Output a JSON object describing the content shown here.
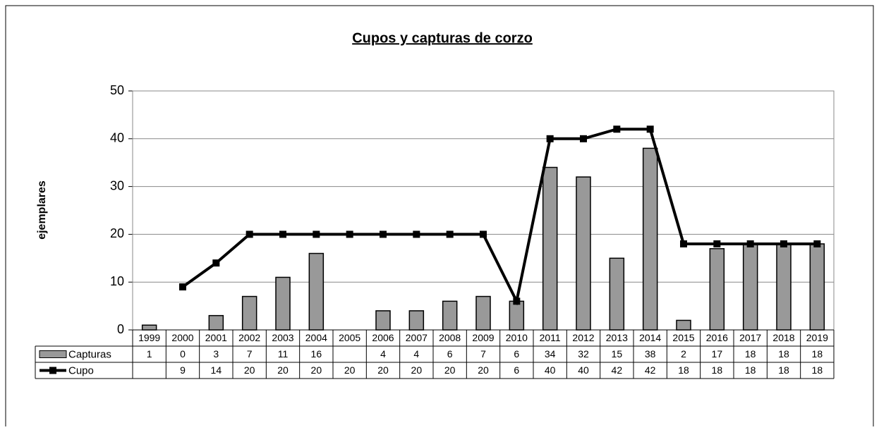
{
  "chart_data": {
    "type": "bar",
    "title": "Cupos y capturas de corzo",
    "y_label": "ejemplares",
    "categories": [
      "1999",
      "2000",
      "2001",
      "2002",
      "2003",
      "2004",
      "2005",
      "2006",
      "2007",
      "2008",
      "2009",
      "2010",
      "2011",
      "2012",
      "2013",
      "2014",
      "2015",
      "2016",
      "2017",
      "2018",
      "2019"
    ],
    "series": [
      {
        "name": "Capturas",
        "type": "bar",
        "color": "#999999",
        "values": [
          1,
          0,
          3,
          7,
          11,
          16,
          null,
          4,
          4,
          6,
          7,
          6,
          34,
          32,
          15,
          38,
          2,
          17,
          18,
          18,
          18
        ]
      },
      {
        "name": "Cupo",
        "type": "line",
        "color": "#000000",
        "values": [
          null,
          9,
          14,
          20,
          20,
          20,
          20,
          20,
          20,
          20,
          20,
          6,
          40,
          40,
          42,
          42,
          18,
          18,
          18,
          18,
          18
        ]
      }
    ],
    "ylim": [
      0,
      50
    ],
    "yticks": [
      0,
      10,
      20,
      30,
      40,
      50
    ],
    "grid": true
  }
}
